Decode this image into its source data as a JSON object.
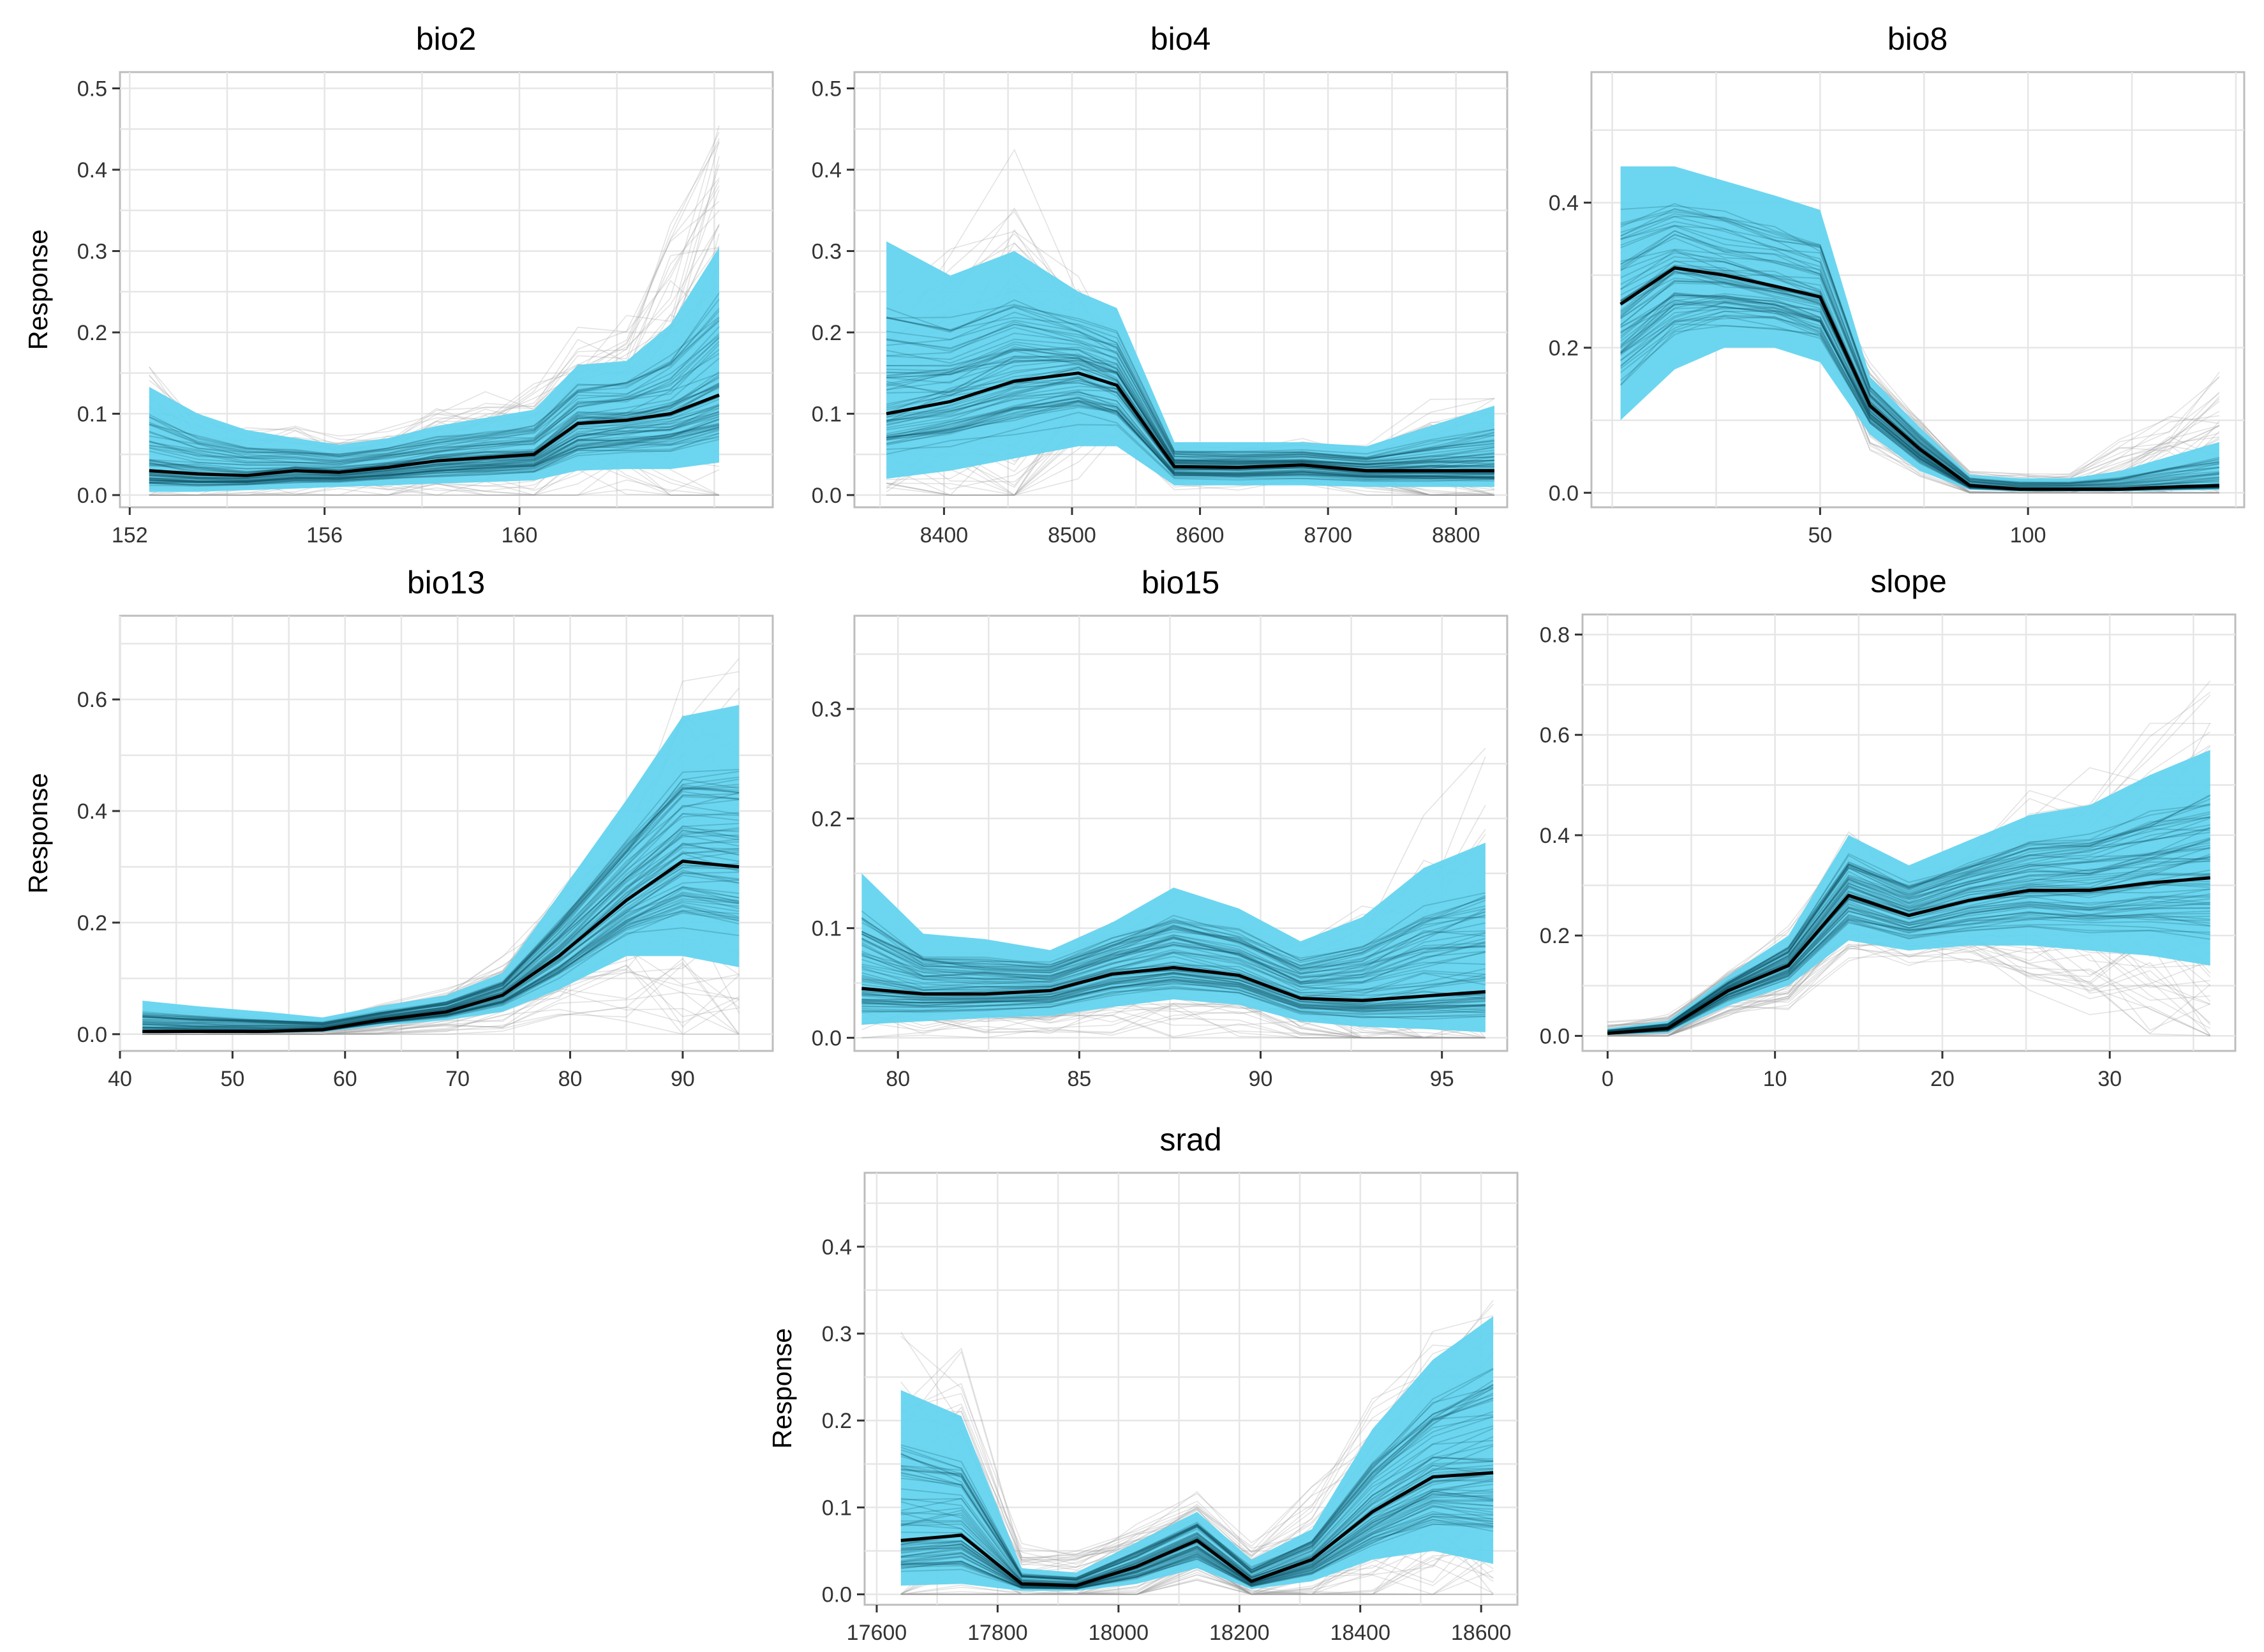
{
  "figure": {
    "ylabel": "Response"
  },
  "colors": {
    "band": "#64d4ef",
    "bandDark": "#0e4c5e",
    "line": "#000000",
    "grid": "#e6e6e6",
    "border": "#bdbdbd",
    "text": "#333333",
    "spaghetti": "#9c9c9c"
  },
  "chart_data": [
    {
      "type": "line",
      "title": "bio2",
      "ylabel": "Response",
      "xlim": [
        151.8,
        165.2
      ],
      "ylim": [
        -0.015,
        0.52
      ],
      "xticks": [
        152,
        156,
        160
      ],
      "yticks": [
        0,
        0.1,
        0.2,
        0.3,
        0.4,
        0.5
      ],
      "ytick_labels": [
        "0.0",
        "0.1",
        "0.2",
        "0.3",
        "0.4",
        "0.5"
      ],
      "x": [
        152.4,
        153.4,
        154.4,
        155.4,
        156.3,
        157.3,
        158.3,
        159.3,
        160.3,
        161.2,
        162.2,
        163.1,
        164.1
      ],
      "mean": [
        0.03,
        0.026,
        0.024,
        0.03,
        0.028,
        0.034,
        0.042,
        0.046,
        0.05,
        0.088,
        0.092,
        0.1,
        0.123
      ],
      "lower": [
        0.004,
        0.004,
        0.006,
        0.008,
        0.01,
        0.012,
        0.014,
        0.016,
        0.018,
        0.03,
        0.032,
        0.032,
        0.04
      ],
      "upper": [
        0.133,
        0.1,
        0.08,
        0.07,
        0.062,
        0.07,
        0.085,
        0.095,
        0.105,
        0.16,
        0.165,
        0.21,
        0.305
      ],
      "spread": [
        0.11,
        0.07,
        0.05,
        0.05,
        0.04,
        0.05,
        0.06,
        0.07,
        0.08,
        0.1,
        0.12,
        0.2,
        0.37
      ]
    },
    {
      "type": "line",
      "title": "bio4",
      "xlim": [
        8330,
        8840
      ],
      "ylim": [
        -0.015,
        0.52
      ],
      "xticks": [
        8400,
        8500,
        8600,
        8700,
        8800
      ],
      "yticks": [
        0,
        0.1,
        0.2,
        0.3,
        0.4,
        0.5
      ],
      "ytick_labels": [
        "0.0",
        "0.1",
        "0.2",
        "0.3",
        "0.4",
        "0.5"
      ],
      "x": [
        8355,
        8405,
        8455,
        8505,
        8535,
        8580,
        8630,
        8680,
        8730,
        8780,
        8830
      ],
      "mean": [
        0.1,
        0.115,
        0.14,
        0.15,
        0.135,
        0.035,
        0.034,
        0.037,
        0.03,
        0.03,
        0.03
      ],
      "lower": [
        0.02,
        0.03,
        0.045,
        0.06,
        0.06,
        0.012,
        0.012,
        0.012,
        0.01,
        0.01,
        0.01
      ],
      "upper": [
        0.312,
        0.27,
        0.3,
        0.25,
        0.23,
        0.065,
        0.065,
        0.065,
        0.06,
        0.085,
        0.11
      ],
      "spread": [
        0.14,
        0.2,
        0.26,
        0.12,
        0.08,
        0.03,
        0.03,
        0.03,
        0.03,
        0.08,
        0.1
      ]
    },
    {
      "type": "line",
      "title": "bio8",
      "xlim": [
        -5,
        152
      ],
      "ylim": [
        -0.02,
        0.58
      ],
      "xticks": [
        50,
        100
      ],
      "yticks": [
        0,
        0.2,
        0.4
      ],
      "ytick_labels": [
        "0.0",
        "0.2",
        "0.4"
      ],
      "x": [
        2,
        15,
        27,
        39,
        50,
        62,
        74,
        86,
        98,
        110,
        122,
        134,
        146
      ],
      "mean": [
        0.26,
        0.31,
        0.3,
        0.285,
        0.27,
        0.12,
        0.06,
        0.01,
        0.005,
        0.005,
        0.005,
        0.008,
        0.01
      ],
      "lower": [
        0.1,
        0.17,
        0.2,
        0.2,
        0.18,
        0.08,
        0.03,
        0.004,
        0.002,
        0.002,
        0.002,
        0.003,
        0.004
      ],
      "upper": [
        0.45,
        0.45,
        0.43,
        0.41,
        0.39,
        0.16,
        0.09,
        0.025,
        0.02,
        0.02,
        0.03,
        0.05,
        0.07
      ],
      "spread": [
        0.1,
        0.08,
        0.06,
        0.06,
        0.05,
        0.06,
        0.04,
        0.02,
        0.02,
        0.02,
        0.06,
        0.1,
        0.16
      ]
    },
    {
      "type": "line",
      "title": "bio13",
      "ylabel": "Response",
      "xlim": [
        40,
        98
      ],
      "ylim": [
        -0.03,
        0.75
      ],
      "xticks": [
        40,
        50,
        60,
        70,
        80,
        90
      ],
      "yticks": [
        0,
        0.2,
        0.4,
        0.6
      ],
      "ytick_labels": [
        "0.0",
        "0.2",
        "0.4",
        "0.6"
      ],
      "x": [
        42,
        47,
        53,
        58,
        63,
        69,
        74,
        79,
        85,
        90,
        95
      ],
      "mean": [
        0.005,
        0.005,
        0.005,
        0.008,
        0.025,
        0.04,
        0.07,
        0.14,
        0.24,
        0.31,
        0.3
      ],
      "lower": [
        0.002,
        0.002,
        0.002,
        0.004,
        0.015,
        0.025,
        0.04,
        0.08,
        0.14,
        0.14,
        0.12
      ],
      "upper": [
        0.06,
        0.05,
        0.04,
        0.03,
        0.05,
        0.07,
        0.11,
        0.25,
        0.42,
        0.57,
        0.59
      ],
      "spread": [
        0.04,
        0.04,
        0.03,
        0.02,
        0.03,
        0.04,
        0.07,
        0.12,
        0.2,
        0.35,
        0.4
      ]
    },
    {
      "type": "line",
      "title": "bio15",
      "xlim": [
        78.8,
        96.8
      ],
      "ylim": [
        -0.012,
        0.385
      ],
      "xticks": [
        80,
        85,
        90,
        95
      ],
      "yticks": [
        0,
        0.1,
        0.2,
        0.3
      ],
      "ytick_labels": [
        "0.0",
        "0.1",
        "0.2",
        "0.3"
      ],
      "x": [
        79.0,
        80.7,
        82.4,
        84.2,
        85.9,
        87.6,
        89.4,
        91.1,
        92.8,
        94.5,
        96.2
      ],
      "mean": [
        0.045,
        0.04,
        0.04,
        0.043,
        0.058,
        0.064,
        0.057,
        0.036,
        0.034,
        0.038,
        0.042
      ],
      "lower": [
        0.012,
        0.015,
        0.018,
        0.02,
        0.028,
        0.035,
        0.03,
        0.015,
        0.01,
        0.008,
        0.005
      ],
      "upper": [
        0.15,
        0.095,
        0.09,
        0.08,
        0.105,
        0.137,
        0.118,
        0.088,
        0.11,
        0.155,
        0.178
      ],
      "spread": [
        0.05,
        0.04,
        0.04,
        0.04,
        0.06,
        0.06,
        0.05,
        0.05,
        0.08,
        0.14,
        0.2
      ]
    },
    {
      "type": "line",
      "title": "slope",
      "xlim": [
        -1.5,
        37.5
      ],
      "ylim": [
        -0.03,
        0.84
      ],
      "xticks": [
        0,
        10,
        20,
        30
      ],
      "yticks": [
        0,
        0.2,
        0.4,
        0.6,
        0.8
      ],
      "ytick_labels": [
        "0.0",
        "0.2",
        "0.4",
        "0.6",
        "0.8"
      ],
      "x": [
        0,
        3.6,
        7.2,
        10.8,
        14.4,
        18,
        21.6,
        25.2,
        28.8,
        32.4,
        36
      ],
      "mean": [
        0.005,
        0.015,
        0.09,
        0.14,
        0.28,
        0.24,
        0.27,
        0.29,
        0.29,
        0.305,
        0.315
      ],
      "lower": [
        0.002,
        0.006,
        0.06,
        0.1,
        0.19,
        0.17,
        0.18,
        0.18,
        0.17,
        0.16,
        0.14
      ],
      "upper": [
        0.015,
        0.03,
        0.12,
        0.2,
        0.4,
        0.34,
        0.39,
        0.44,
        0.46,
        0.52,
        0.57
      ],
      "spread": [
        0.02,
        0.03,
        0.05,
        0.08,
        0.12,
        0.1,
        0.12,
        0.18,
        0.22,
        0.3,
        0.4
      ]
    },
    {
      "type": "line",
      "title": "srad",
      "ylabel": "Response",
      "xlim": [
        17580,
        18660
      ],
      "ylim": [
        -0.012,
        0.485
      ],
      "xticks": [
        17600,
        17800,
        18000,
        18200,
        18400,
        18600
      ],
      "yticks": [
        0,
        0.1,
        0.2,
        0.3,
        0.4
      ],
      "ytick_labels": [
        "0.0",
        "0.1",
        "0.2",
        "0.3",
        "0.4"
      ],
      "x": [
        17640,
        17740,
        17840,
        17930,
        18030,
        18130,
        18220,
        18320,
        18420,
        18520,
        18620
      ],
      "mean": [
        0.062,
        0.068,
        0.012,
        0.01,
        0.032,
        0.062,
        0.015,
        0.04,
        0.095,
        0.135,
        0.14
      ],
      "lower": [
        0.01,
        0.012,
        0.004,
        0.004,
        0.012,
        0.03,
        0.006,
        0.015,
        0.04,
        0.05,
        0.035
      ],
      "upper": [
        0.235,
        0.205,
        0.03,
        0.025,
        0.06,
        0.095,
        0.04,
        0.075,
        0.19,
        0.27,
        0.32
      ],
      "spread": [
        0.22,
        0.2,
        0.04,
        0.04,
        0.05,
        0.05,
        0.04,
        0.08,
        0.12,
        0.16,
        0.2
      ]
    }
  ]
}
